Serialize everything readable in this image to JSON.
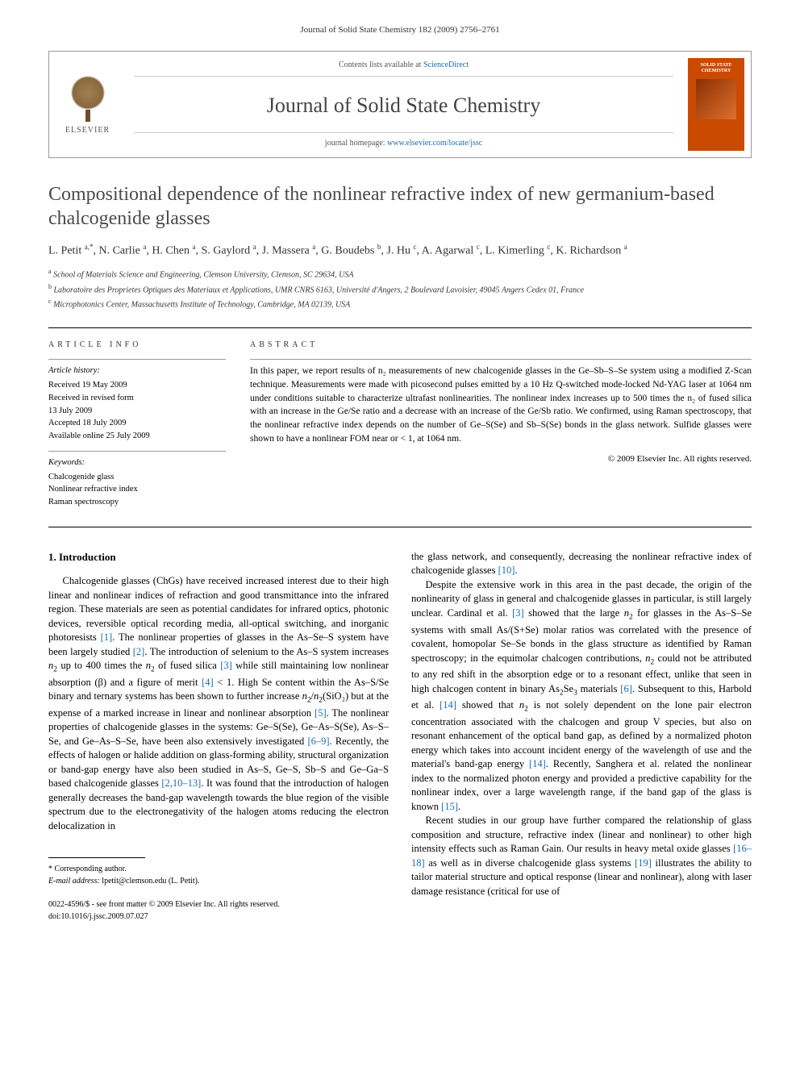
{
  "citation": "Journal of Solid State Chemistry 182 (2009) 2756–2761",
  "header": {
    "contents_prefix": "Contents lists available at ",
    "contents_link": "ScienceDirect",
    "journal": "Journal of Solid State Chemistry",
    "homepage_prefix": "journal homepage: ",
    "homepage_url": "www.elsevier.com/locate/jssc",
    "publisher": "ELSEVIER",
    "cover_label": "SOLID STATE CHEMISTRY"
  },
  "title": "Compositional dependence of the nonlinear refractive index of new germanium-based chalcogenide glasses",
  "authors_html": "L. Petit <sup>a,*</sup>, N. Carlie <sup>a</sup>, H. Chen <sup>a</sup>, S. Gaylord <sup>a</sup>, J. Massera <sup>a</sup>, G. Boudebs <sup>b</sup>, J. Hu <sup>c</sup>, A. Agarwal <sup>c</sup>, L. Kimerling <sup>c</sup>, K. Richardson <sup>a</sup>",
  "affiliations": {
    "a": "School of Materials Science and Engineering, Clemson University, Clemson, SC 29634, USA",
    "b": "Laboratoire des Proprietes Optiques des Materiaux et Applications, UMR CNRS 6163, Université d'Angers, 2 Boulevard Lavoisier, 49045 Angers Cedex 01, France",
    "c": "Microphotonics Center, Massachusetts Institute of Technology, Cambridge, MA 02139, USA"
  },
  "article_info": {
    "heading": "ARTICLE INFO",
    "history_label": "Article history:",
    "history": [
      "Received 19 May 2009",
      "Received in revised form",
      "13 July 2009",
      "Accepted 18 July 2009",
      "Available online 25 July 2009"
    ],
    "keywords_label": "Keywords:",
    "keywords": [
      "Chalcogenide glass",
      "Nonlinear refractive index",
      "Raman spectroscopy"
    ]
  },
  "abstract": {
    "heading": "ABSTRACT",
    "text": "In this paper, we report results of n₂ measurements of new chalcogenide glasses in the Ge–Sb–S–Se system using a modified Z-Scan technique. Measurements were made with picosecond pulses emitted by a 10 Hz Q-switched mode-locked Nd-YAG laser at 1064 nm under conditions suitable to characterize ultrafast nonlinearities. The nonlinear index increases up to 500 times the n₂ of fused silica with an increase in the Ge/Se ratio and a decrease with an increase of the Ge/Sb ratio. We confirmed, using Raman spectroscopy, that the nonlinear refractive index depends on the number of Ge–S(Se) and Sb–S(Se) bonds in the glass network. Sulfide glasses were shown to have a nonlinear FOM near or < 1, at 1064 nm.",
    "copyright": "© 2009 Elsevier Inc. All rights reserved."
  },
  "section1": {
    "heading": "1. Introduction",
    "col1_p1": "Chalcogenide glasses (ChGs) have received increased interest due to their high linear and nonlinear indices of refraction and good transmittance into the infrared region. These materials are seen as potential candidates for infrared optics, photonic devices, reversible optical recording media, all-optical switching, and inorganic photoresists [1]. The nonlinear properties of glasses in the As–Se–S system have been largely studied [2]. The introduction of selenium to the As–S system increases n₂ up to 400 times the n₂ of fused silica [3] while still maintaining low nonlinear absorption (β) and a figure of merit [4] < 1. High Se content within the As–S/Se binary and ternary systems has been shown to further increase n₂/n₂(SiO₂) but at the expense of a marked increase in linear and nonlinear absorption [5]. The nonlinear properties of chalcogenide glasses in the systems: Ge–S(Se), Ge–As–S(Se), As–S–Se, and Ge–As–S–Se, have been also extensively investigated [6–9]. Recently, the effects of halogen or halide addition on glass-forming ability, structural organization or band-gap energy have also been studied in As–S, Ge–S, Sb–S and Ge–Ga–S based chalcogenide glasses [2,10–13]. It was found that the introduction of halogen generally decreases the band-gap wavelength towards the blue region of the visible spectrum due to the electronegativity of the halogen atoms reducing the electron delocalization in",
    "col2_p1": "the glass network, and consequently, decreasing the nonlinear refractive index of chalcogenide glasses [10].",
    "col2_p2": "Despite the extensive work in this area in the past decade, the origin of the nonlinearity of glass in general and chalcogenide glasses in particular, is still largely unclear. Cardinal et al. [3] showed that the large n₂ for glasses in the As–S–Se systems with small As/(S+Se) molar ratios was correlated with the presence of covalent, homopolar Se–Se bonds in the glass structure as identified by Raman spectroscopy; in the equimolar chalcogen contributions, n₂ could not be attributed to any red shift in the absorption edge or to a resonant effect, unlike that seen in high chalcogen content in binary As₂Se₃ materials [6]. Subsequent to this, Harbold et al. [14] showed that n₂ is not solely dependent on the lone pair electron concentration associated with the chalcogen and group V species, but also on resonant enhancement of the optical band gap, as defined by a normalized photon energy which takes into account incident energy of the wavelength of use and the material's band-gap energy [14]. Recently, Sanghera et al. related the nonlinear index to the normalized photon energy and provided a predictive capability for the nonlinear index, over a large wavelength range, if the band gap of the glass is known [15].",
    "col2_p3": "Recent studies in our group have further compared the relationship of glass composition and structure, refractive index (linear and nonlinear) to other high intensity effects such as Raman Gain. Our results in heavy metal oxide glasses [16–18] as well as in diverse chalcogenide glass systems [19] illustrates the ability to tailor material structure and optical response (linear and nonlinear), along with laser damage resistance (critical for use of"
  },
  "footnotes": {
    "corr": "* Corresponding author.",
    "email_label": "E-mail address:",
    "email": "lpetit@clemson.edu (L. Petit)."
  },
  "bottom": {
    "line1": "0022-4596/$ - see front matter © 2009 Elsevier Inc. All rights reserved.",
    "line2": "doi:10.1016/j.jssc.2009.07.027"
  },
  "colors": {
    "link": "#1a6bb3",
    "cover_bg": "#c94a00",
    "text": "#000000",
    "gray": "#4a4a4a"
  }
}
